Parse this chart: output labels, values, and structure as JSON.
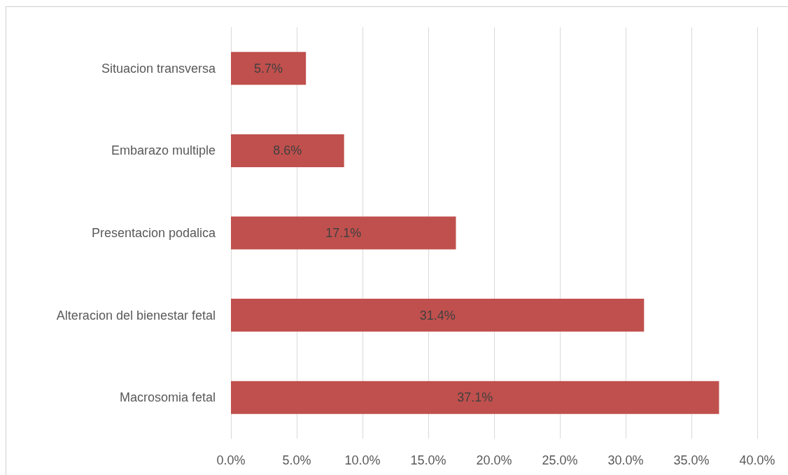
{
  "chart_data": {
    "type": "bar",
    "orientation": "horizontal",
    "categories": [
      "Situacion transversa",
      "Embarazo multiple",
      "Presentacion podalica",
      "Alteracion del bienestar fetal",
      "Macrosomia fetal"
    ],
    "values": [
      5.7,
      8.6,
      17.1,
      31.4,
      37.1
    ],
    "color": "#c0504d",
    "value_labels": [
      "5.7%",
      "8.6%",
      "17.1%",
      "31.4%",
      "37.1%"
    ],
    "xlim": [
      0,
      40
    ],
    "xticks": [
      {
        "value": 0,
        "label": "0.0%"
      },
      {
        "value": 5,
        "label": "5.0%"
      },
      {
        "value": 10,
        "label": "10.0%"
      },
      {
        "value": 15,
        "label": "15.0%"
      },
      {
        "value": 20,
        "label": "20.0%"
      },
      {
        "value": 25,
        "label": "25.0%"
      },
      {
        "value": 30,
        "label": "30.0%"
      },
      {
        "value": 35,
        "label": "35.0%"
      },
      {
        "value": 40,
        "label": "40.0%"
      }
    ],
    "grid": "x"
  }
}
